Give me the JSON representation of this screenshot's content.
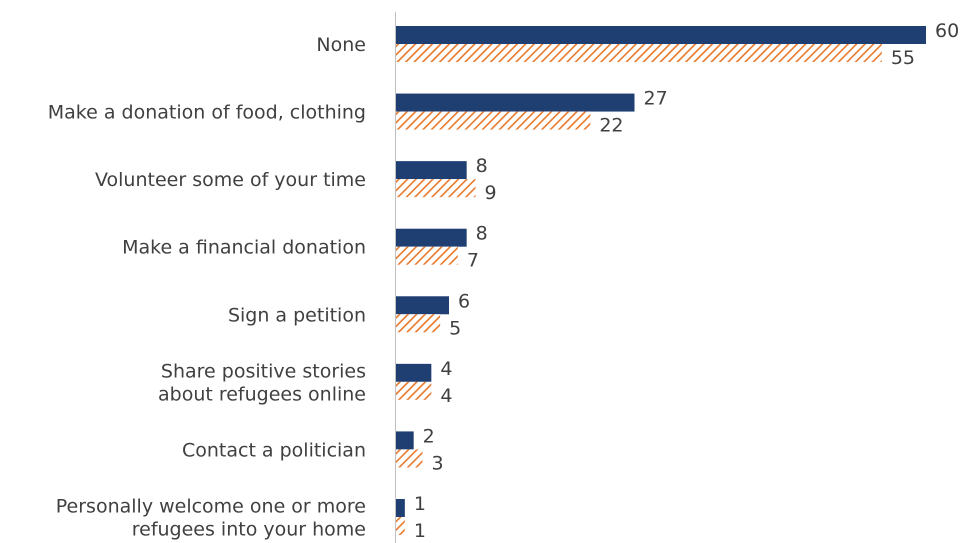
{
  "chart_data": {
    "type": "bar",
    "orientation": "horizontal",
    "categories": [
      [
        "None"
      ],
      [
        "Make a donation of food, clothing"
      ],
      [
        "Volunteer some of your time"
      ],
      [
        "Make a financial donation"
      ],
      [
        "Sign a petition"
      ],
      [
        "Share positive stories",
        "about refugees online"
      ],
      [
        "Contact a politician"
      ],
      [
        "Personally welcome one or more",
        "refugees into your home"
      ]
    ],
    "series": [
      {
        "values": [
          60,
          27,
          8,
          8,
          6,
          4,
          2,
          1
        ],
        "color": "#1f3f73",
        "pattern": "solid"
      },
      {
        "values": [
          55,
          22,
          9,
          7,
          5,
          4,
          3,
          1
        ],
        "color": "#e8782a",
        "pattern": "diagonal-hatch"
      }
    ],
    "xlim": [
      0,
      60
    ],
    "grid": false,
    "legend": "none"
  }
}
